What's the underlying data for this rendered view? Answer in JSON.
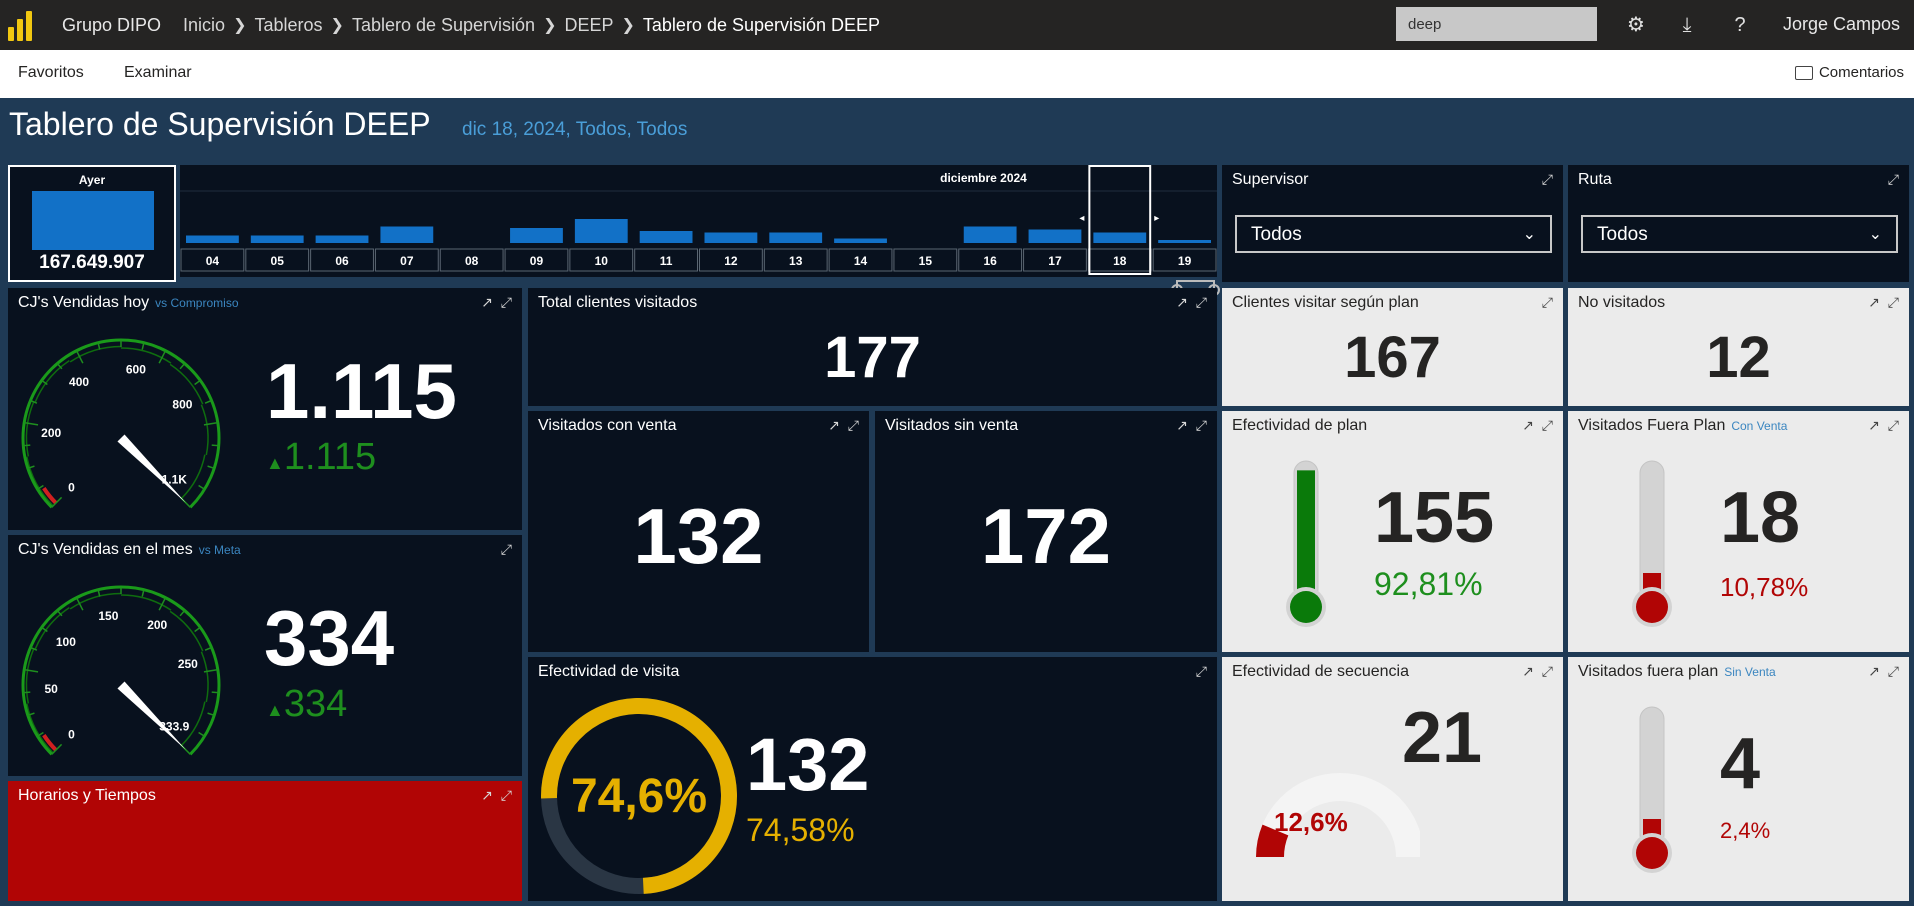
{
  "app": {
    "org": "Grupo DIPO",
    "breadcrumbs": [
      "Inicio",
      "Tableros",
      "Tablero de Supervisión",
      "DEEP"
    ],
    "current": "Tablero de Supervisión DEEP",
    "search_value": "deep",
    "user": "Jorge Campos",
    "accent": "#f2c811"
  },
  "nav": {
    "favorites": "Favoritos",
    "browse": "Examinar",
    "comments": "Comentarios"
  },
  "dashboard": {
    "title": "Tablero de Supervisión DEEP",
    "subtitle": "dic 18, 2024, Todos, Todos"
  },
  "date_slicer": {
    "selected_label": "Ayer",
    "selected_value": "167.649.907",
    "month": "diciembre 2024",
    "days": [
      "04",
      "05",
      "06",
      "07",
      "08",
      "09",
      "10",
      "11",
      "12",
      "13",
      "14",
      "15",
      "16",
      "17",
      "18",
      "19"
    ],
    "bar_levels": [
      0.25,
      0.25,
      0.25,
      0.55,
      0,
      0.5,
      0.8,
      0.4,
      0.35,
      0.35,
      0.15,
      0,
      0.55,
      0.45,
      0.35,
      0.1
    ],
    "selected_day": "18"
  },
  "supervisor": {
    "title": "Supervisor",
    "value": "Todos"
  },
  "ruta": {
    "title": "Ruta",
    "value": "Todos"
  },
  "cj_hoy": {
    "title": "CJ's Vendidas hoy",
    "sub": "vs Compromiso",
    "value": "1.115",
    "delta": "1.115",
    "gauge": {
      "ticks": [
        "0",
        "200",
        "400",
        "600",
        "800"
      ],
      "max_label": "1.1K",
      "fraction": 1.0
    }
  },
  "cj_mes": {
    "title": "CJ's Vendidas en el mes",
    "sub": "vs Meta",
    "value": "334",
    "delta": "334",
    "gauge": {
      "ticks": [
        "0",
        "50",
        "100",
        "150",
        "200",
        "250"
      ],
      "max_label": "333.9",
      "fraction": 1.0
    }
  },
  "horarios": {
    "title": "Horarios y Tiempos"
  },
  "total_clientes": {
    "title": "Total clientes visitados",
    "value": "177"
  },
  "con_venta": {
    "title": "Visitados con venta",
    "value": "132"
  },
  "sin_venta": {
    "title": "Visitados sin venta",
    "value": "172"
  },
  "efectividad_visita": {
    "title": "Efectividad de visita",
    "ring_label": "74,6%",
    "value": "132",
    "pct": "74,58%",
    "fraction": 0.746
  },
  "clientes_plan": {
    "title": "Clientes visitar según plan",
    "value": "167"
  },
  "no_visitados": {
    "title": "No visitados",
    "value": "12"
  },
  "efectividad_plan": {
    "title": "Efectividad de plan",
    "value": "155",
    "pct": "92,81%",
    "fraction": 0.9281
  },
  "fuera_plan_con": {
    "title": "Visitados Fuera Plan",
    "sub": "Con Venta",
    "value": "18",
    "pct": "10,78%",
    "fraction": 0.1078
  },
  "efectividad_secuencia": {
    "title": "Efectividad de secuencia",
    "value": "21",
    "pct": "12,6%",
    "fraction": 0.126
  },
  "fuera_plan_sin": {
    "title": "Visitados fuera plan",
    "sub": "Sin Venta",
    "value": "4",
    "pct": "2,4%",
    "fraction": 0.024
  },
  "colors": {
    "green": "#1e8f1e",
    "red": "#b10505",
    "gold": "#e5b000",
    "bar": "#1271c7"
  }
}
